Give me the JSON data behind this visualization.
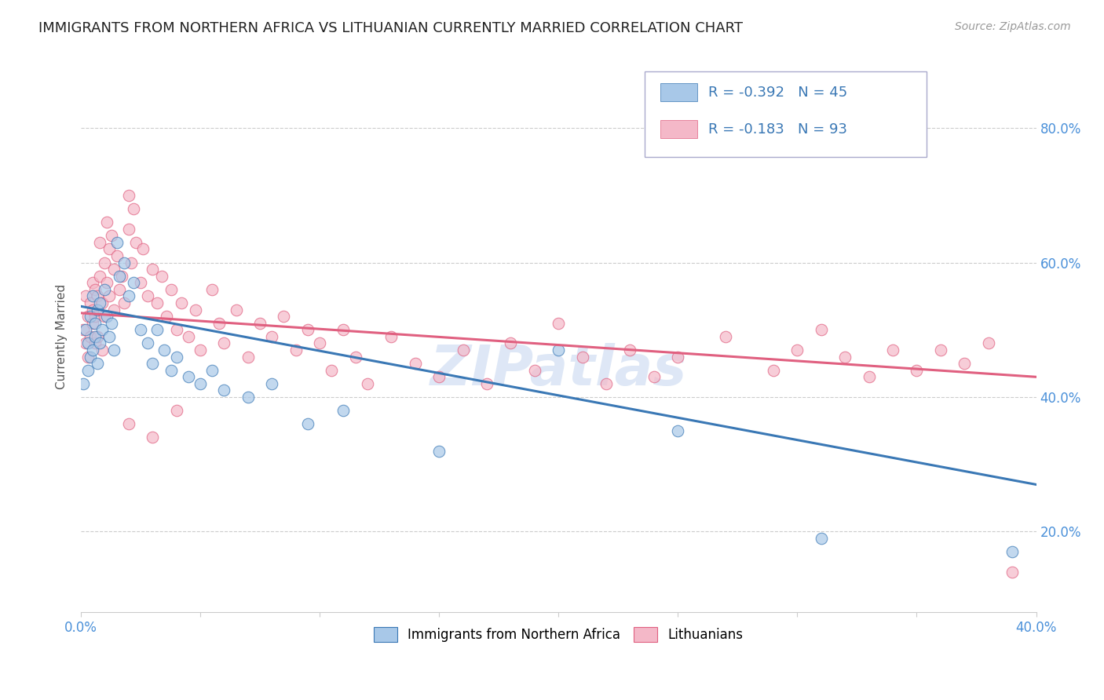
{
  "title": "IMMIGRANTS FROM NORTHERN AFRICA VS LITHUANIAN CURRENTLY MARRIED CORRELATION CHART",
  "source": "Source: ZipAtlas.com",
  "ylabel": "Currently Married",
  "watermark": "ZIPatlas",
  "xlim": [
    0.0,
    0.4
  ],
  "ylim": [
    0.08,
    0.9
  ],
  "blue_R": -0.392,
  "blue_N": 45,
  "pink_R": -0.183,
  "pink_N": 93,
  "blue_color": "#a8c8e8",
  "pink_color": "#f4b8c8",
  "blue_line_color": "#3a78b5",
  "pink_line_color": "#e06080",
  "blue_tick_color": "#4a90d9",
  "background_color": "#ffffff",
  "grid_color": "#cccccc",
  "title_fontsize": 13,
  "source_fontsize": 10,
  "legend_fontsize": 13,
  "watermark_color": "#c8d8f0",
  "watermark_fontsize": 52,
  "blue_x": [
    0.001,
    0.002,
    0.003,
    0.003,
    0.004,
    0.004,
    0.005,
    0.005,
    0.006,
    0.006,
    0.007,
    0.007,
    0.008,
    0.008,
    0.009,
    0.01,
    0.011,
    0.012,
    0.013,
    0.014,
    0.015,
    0.016,
    0.018,
    0.02,
    0.022,
    0.025,
    0.028,
    0.03,
    0.032,
    0.035,
    0.038,
    0.04,
    0.045,
    0.05,
    0.055,
    0.06,
    0.07,
    0.08,
    0.095,
    0.11,
    0.15,
    0.2,
    0.25,
    0.31,
    0.39
  ],
  "blue_y": [
    0.42,
    0.5,
    0.48,
    0.44,
    0.52,
    0.46,
    0.55,
    0.47,
    0.51,
    0.49,
    0.53,
    0.45,
    0.54,
    0.48,
    0.5,
    0.56,
    0.52,
    0.49,
    0.51,
    0.47,
    0.63,
    0.58,
    0.6,
    0.55,
    0.57,
    0.5,
    0.48,
    0.45,
    0.5,
    0.47,
    0.44,
    0.46,
    0.43,
    0.42,
    0.44,
    0.41,
    0.4,
    0.42,
    0.36,
    0.38,
    0.32,
    0.47,
    0.35,
    0.19,
    0.17
  ],
  "pink_x": [
    0.001,
    0.002,
    0.002,
    0.003,
    0.003,
    0.004,
    0.004,
    0.005,
    0.005,
    0.005,
    0.006,
    0.006,
    0.006,
    0.007,
    0.007,
    0.008,
    0.008,
    0.009,
    0.009,
    0.01,
    0.01,
    0.011,
    0.011,
    0.012,
    0.012,
    0.013,
    0.014,
    0.014,
    0.015,
    0.016,
    0.017,
    0.018,
    0.02,
    0.02,
    0.021,
    0.022,
    0.023,
    0.025,
    0.026,
    0.028,
    0.03,
    0.032,
    0.034,
    0.036,
    0.038,
    0.04,
    0.042,
    0.045,
    0.048,
    0.05,
    0.055,
    0.058,
    0.06,
    0.065,
    0.07,
    0.075,
    0.08,
    0.085,
    0.09,
    0.095,
    0.1,
    0.105,
    0.11,
    0.115,
    0.12,
    0.13,
    0.14,
    0.15,
    0.16,
    0.17,
    0.18,
    0.19,
    0.2,
    0.21,
    0.22,
    0.23,
    0.24,
    0.25,
    0.27,
    0.29,
    0.3,
    0.31,
    0.32,
    0.33,
    0.34,
    0.35,
    0.36,
    0.37,
    0.38,
    0.39,
    0.02,
    0.03,
    0.04
  ],
  "pink_y": [
    0.5,
    0.48,
    0.55,
    0.52,
    0.46,
    0.54,
    0.49,
    0.57,
    0.51,
    0.53,
    0.56,
    0.48,
    0.52,
    0.55,
    0.49,
    0.63,
    0.58,
    0.54,
    0.47,
    0.6,
    0.52,
    0.66,
    0.57,
    0.62,
    0.55,
    0.64,
    0.59,
    0.53,
    0.61,
    0.56,
    0.58,
    0.54,
    0.7,
    0.65,
    0.6,
    0.68,
    0.63,
    0.57,
    0.62,
    0.55,
    0.59,
    0.54,
    0.58,
    0.52,
    0.56,
    0.5,
    0.54,
    0.49,
    0.53,
    0.47,
    0.56,
    0.51,
    0.48,
    0.53,
    0.46,
    0.51,
    0.49,
    0.52,
    0.47,
    0.5,
    0.48,
    0.44,
    0.5,
    0.46,
    0.42,
    0.49,
    0.45,
    0.43,
    0.47,
    0.42,
    0.48,
    0.44,
    0.51,
    0.46,
    0.42,
    0.47,
    0.43,
    0.46,
    0.49,
    0.44,
    0.47,
    0.5,
    0.46,
    0.43,
    0.47,
    0.44,
    0.47,
    0.45,
    0.48,
    0.14,
    0.36,
    0.34,
    0.38
  ]
}
